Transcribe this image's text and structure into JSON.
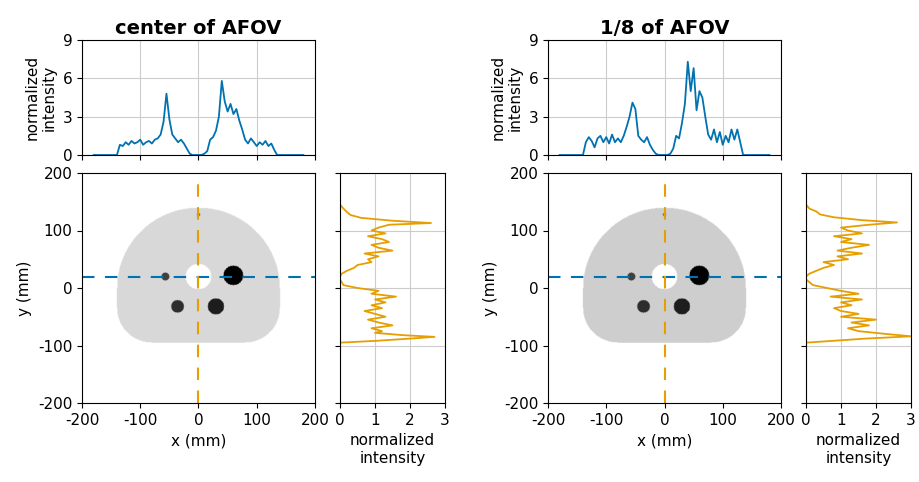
{
  "chart_data": [
    {
      "type": "image_with_profiles",
      "title": "center of AFOV",
      "image": {
        "xlabel": "x (mm)",
        "ylabel": "y (mm)",
        "xlim": [
          -200,
          200
        ],
        "ylim": [
          -200,
          200
        ],
        "xticks": [
          -200,
          -100,
          0,
          100,
          200
        ],
        "yticks": [
          -200,
          -100,
          0,
          100,
          200
        ],
        "color_range": [
          0,
          4
        ],
        "body": {
          "half_width": 140,
          "top": 140,
          "bottom": -95,
          "corner_radius": 60,
          "intensity": 1
        },
        "inserts": [
          {
            "x": 0,
            "y": 20,
            "r": 22,
            "intensity": 0
          },
          {
            "x": 60,
            "y": 22,
            "r": 17,
            "intensity": 4
          },
          {
            "x": 30,
            "y": -32,
            "r": 14,
            "intensity": 3.6
          },
          {
            "x": -36,
            "y": -32,
            "r": 11,
            "intensity": 3.4
          },
          {
            "x": -57,
            "y": 20,
            "r": 7,
            "intensity": 3.2
          },
          {
            "x": 0,
            "y": 128,
            "r": 3,
            "intensity": 2.5
          }
        ]
      },
      "x_profile": {
        "type": "line",
        "color": "#0072b2",
        "line_style": "solid",
        "y": 20,
        "ylabel": "normalized\nintensity",
        "xlim": [
          -200,
          200
        ],
        "ylim": [
          0,
          9
        ],
        "xticks": [
          -200,
          -100,
          0,
          100,
          200
        ],
        "yticks": [
          0,
          3,
          6,
          9
        ],
        "grid": true,
        "tick_labels": "y",
        "x": [
          -180,
          -140,
          -135,
          -130,
          -125,
          -120,
          -115,
          -110,
          -105,
          -100,
          -95,
          -90,
          -85,
          -80,
          -75,
          -70,
          -65,
          -60,
          -55,
          -50,
          -45,
          -40,
          -35,
          -30,
          -25,
          -20,
          -15,
          -10,
          -5,
          0,
          5,
          10,
          15,
          20,
          25,
          30,
          35,
          40,
          45,
          50,
          55,
          60,
          65,
          70,
          75,
          80,
          85,
          90,
          95,
          100,
          105,
          110,
          115,
          120,
          125,
          130,
          135,
          180
        ],
        "values": [
          0,
          0,
          0.8,
          0.7,
          1.0,
          0.8,
          1.1,
          0.9,
          1.0,
          1.2,
          0.8,
          1.0,
          1.1,
          0.9,
          1.2,
          1.3,
          1.6,
          2.6,
          4.8,
          2.8,
          1.6,
          1.3,
          1.0,
          1.2,
          0.9,
          0.5,
          0.1,
          0,
          0,
          0,
          0,
          0.1,
          0.3,
          1.2,
          1.4,
          1.9,
          3.0,
          5.8,
          4.2,
          3.4,
          4.0,
          3.2,
          3.6,
          2.7,
          2.0,
          1.2,
          0.9,
          1.3,
          1.0,
          0.7,
          1.0,
          0.8,
          1.1,
          0.7,
          0.9,
          0.4,
          0,
          0
        ]
      },
      "y_profile": {
        "type": "line",
        "color": "#e69f00",
        "line_style": "solid",
        "x": 0,
        "xlabel": "normalized\nintensity",
        "xlim": [
          0,
          3
        ],
        "ylim": [
          -200,
          200
        ],
        "xticks": [
          0,
          1,
          2,
          3
        ],
        "yticks": [
          -200,
          -100,
          0,
          100,
          200
        ],
        "grid": true,
        "tick_labels": "x",
        "y": [
          -200,
          -95,
          -92,
          -88,
          -85,
          -82,
          -78,
          -75,
          -70,
          -65,
          -60,
          -55,
          -50,
          -45,
          -40,
          -35,
          -30,
          -25,
          -20,
          -15,
          -10,
          -5,
          0,
          5,
          10,
          15,
          20,
          25,
          30,
          35,
          40,
          45,
          50,
          55,
          60,
          65,
          70,
          75,
          80,
          85,
          90,
          95,
          100,
          105,
          110,
          113,
          117,
          122,
          127,
          132,
          138,
          145,
          200
        ],
        "values": [
          0,
          0,
          1.0,
          2.0,
          2.7,
          1.8,
          1.0,
          1.2,
          0.9,
          1.5,
          1.1,
          0.8,
          1.3,
          1.0,
          0.7,
          1.2,
          0.9,
          1.3,
          1.0,
          1.6,
          0.9,
          1.1,
          0.5,
          0.1,
          0.05,
          0,
          0,
          0.05,
          0.2,
          0.4,
          0.5,
          0.9,
          0.8,
          1.1,
          0.7,
          1.5,
          1.1,
          0.9,
          1.4,
          1.2,
          0.8,
          1.3,
          0.9,
          1.1,
          1.4,
          2.6,
          1.5,
          0.6,
          0.3,
          0.2,
          0.1,
          0,
          0
        ]
      }
    },
    {
      "type": "image_with_profiles",
      "title": "1/8 of AFOV",
      "image": {
        "xlabel": "x (mm)",
        "ylabel": "y (mm)",
        "xlim": [
          -200,
          200
        ],
        "ylim": [
          -200,
          200
        ],
        "xticks": [
          -200,
          -100,
          0,
          100,
          200
        ],
        "yticks": [
          -200,
          -100,
          0,
          100,
          200
        ],
        "color_range": [
          0,
          4
        ],
        "body": {
          "half_width": 140,
          "top": 140,
          "bottom": -95,
          "corner_radius": 60,
          "intensity": 1.2
        },
        "inserts": [
          {
            "x": 0,
            "y": 20,
            "r": 22,
            "intensity": 0
          },
          {
            "x": 60,
            "y": 22,
            "r": 17,
            "intensity": 4
          },
          {
            "x": 30,
            "y": -32,
            "r": 14,
            "intensity": 3.6
          },
          {
            "x": -36,
            "y": -32,
            "r": 11,
            "intensity": 3.4
          },
          {
            "x": -57,
            "y": 20,
            "r": 7,
            "intensity": 3.2
          },
          {
            "x": 0,
            "y": 128,
            "r": 3,
            "intensity": 2.5
          }
        ]
      },
      "x_profile": {
        "type": "line",
        "color": "#0072b2",
        "line_style": "solid",
        "y": 20,
        "ylabel": "normalized\nintensity",
        "xlim": [
          -200,
          200
        ],
        "ylim": [
          0,
          9
        ],
        "xticks": [
          -200,
          -100,
          0,
          100,
          200
        ],
        "yticks": [
          0,
          3,
          6,
          9
        ],
        "grid": true,
        "tick_labels": "y",
        "x": [
          -180,
          -140,
          -135,
          -130,
          -125,
          -120,
          -115,
          -110,
          -105,
          -100,
          -95,
          -90,
          -85,
          -80,
          -75,
          -70,
          -65,
          -60,
          -55,
          -50,
          -45,
          -40,
          -35,
          -30,
          -25,
          -20,
          -15,
          -10,
          -5,
          0,
          5,
          10,
          15,
          20,
          25,
          30,
          35,
          40,
          45,
          50,
          55,
          60,
          65,
          70,
          75,
          80,
          85,
          90,
          95,
          100,
          105,
          110,
          115,
          120,
          125,
          130,
          135,
          180
        ],
        "values": [
          0,
          0,
          1.0,
          1.4,
          1.1,
          0.6,
          1.3,
          1.5,
          1.0,
          1.4,
          0.9,
          1.6,
          1.0,
          1.3,
          1.0,
          1.5,
          2.2,
          3.0,
          4.1,
          3.6,
          1.5,
          1.2,
          1.0,
          1.4,
          0.8,
          0.4,
          0.1,
          0,
          0,
          0,
          0,
          0.1,
          0.5,
          1.5,
          1.3,
          2.5,
          4.0,
          7.3,
          5.0,
          6.8,
          3.5,
          5.0,
          4.5,
          3.0,
          1.6,
          1.2,
          2.0,
          1.0,
          1.8,
          0.8,
          1.5,
          1.0,
          2.0,
          1.2,
          2.0,
          1.0,
          0,
          0
        ]
      },
      "y_profile": {
        "type": "line",
        "color": "#e69f00",
        "line_style": "solid",
        "x": 0,
        "xlabel": "normalized\nintensity",
        "xlim": [
          0,
          3
        ],
        "ylim": [
          -200,
          200
        ],
        "xticks": [
          0,
          1,
          2,
          3
        ],
        "yticks": [
          -200,
          -100,
          0,
          100,
          200
        ],
        "grid": true,
        "tick_labels": "x",
        "y": [
          -200,
          -95,
          -93,
          -88,
          -84,
          -80,
          -75,
          -70,
          -65,
          -60,
          -55,
          -50,
          -45,
          -40,
          -35,
          -30,
          -25,
          -20,
          -15,
          -10,
          -5,
          0,
          5,
          10,
          15,
          20,
          25,
          30,
          35,
          40,
          45,
          50,
          55,
          60,
          65,
          70,
          75,
          80,
          85,
          90,
          95,
          100,
          105,
          110,
          114,
          118,
          123,
          128,
          133,
          138,
          145,
          200
        ],
        "values": [
          0,
          0,
          0.5,
          1.7,
          3.0,
          2.3,
          1.5,
          1.2,
          1.8,
          1.3,
          2.0,
          1.0,
          1.5,
          1.0,
          0.8,
          1.3,
          1.0,
          1.6,
          0.7,
          1.5,
          1.0,
          0.6,
          0.2,
          0.1,
          0,
          0,
          0.1,
          0.3,
          0.5,
          0.8,
          0.5,
          1.2,
          0.9,
          1.6,
          0.9,
          1.3,
          1.8,
          1.0,
          1.3,
          0.8,
          1.6,
          1.2,
          1.0,
          1.8,
          2.6,
          1.6,
          0.8,
          0.4,
          0.3,
          0.1,
          0,
          0
        ]
      }
    }
  ]
}
